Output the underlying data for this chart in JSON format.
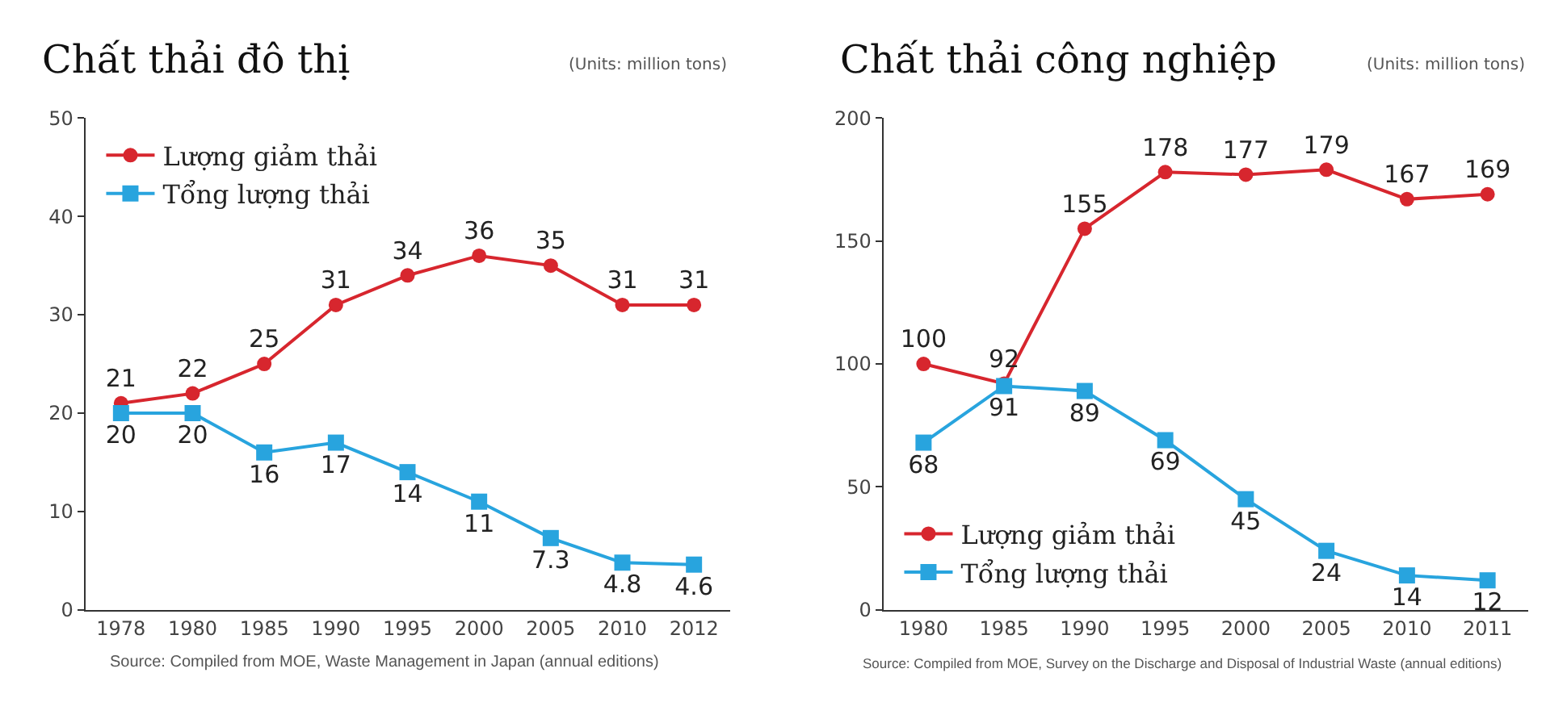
{
  "chart_data": [
    {
      "type": "line",
      "title": "Chất thải đô thị",
      "categories": [
        "1978",
        "1980",
        "1985",
        "1990",
        "1995",
        "2000",
        "2005",
        "2010",
        "2012"
      ],
      "series": [
        {
          "name": "Lượng giảm thải",
          "color": "#d7262e",
          "marker": "circle",
          "values": [
            21,
            22,
            25,
            31,
            34,
            36,
            35,
            31,
            31
          ]
        },
        {
          "name": "Tổng lượng thải",
          "color": "#28a4de",
          "marker": "square",
          "values": [
            20,
            20,
            16,
            17,
            14,
            11,
            7.3,
            4.8,
            4.6
          ]
        }
      ],
      "ylim": [
        0,
        50
      ],
      "yticks": [
        0,
        10,
        20,
        30,
        40,
        50
      ],
      "data_labels": true,
      "legend": "top left",
      "annotations": [
        "(Units: million tons)",
        "Source: Compiled from MOE, Waste Management in Japan (annual editions)"
      ]
    },
    {
      "type": "line",
      "title": "Chất thải công nghiệp",
      "categories": [
        "1980",
        "1985",
        "1990",
        "1995",
        "2000",
        "2005",
        "2010",
        "2011"
      ],
      "series": [
        {
          "name": "Lượng giảm thải",
          "color": "#d7262e",
          "marker": "circle",
          "values": [
            100,
            92,
            155,
            178,
            177,
            179,
            167,
            169
          ]
        },
        {
          "name": "Tổng lượng thải",
          "color": "#28a4de",
          "marker": "square",
          "values": [
            68,
            91,
            89,
            69,
            45,
            24,
            14,
            12
          ]
        }
      ],
      "ylim": [
        0,
        200
      ],
      "yticks": [
        0,
        50,
        100,
        150,
        200
      ],
      "data_labels": true,
      "legend": "bottom left",
      "annotations": [
        "(Units: million tons)",
        "Source: Compiled from MOE, Survey on the Discharge and Disposal of Industrial Waste (annual editions)"
      ]
    }
  ]
}
